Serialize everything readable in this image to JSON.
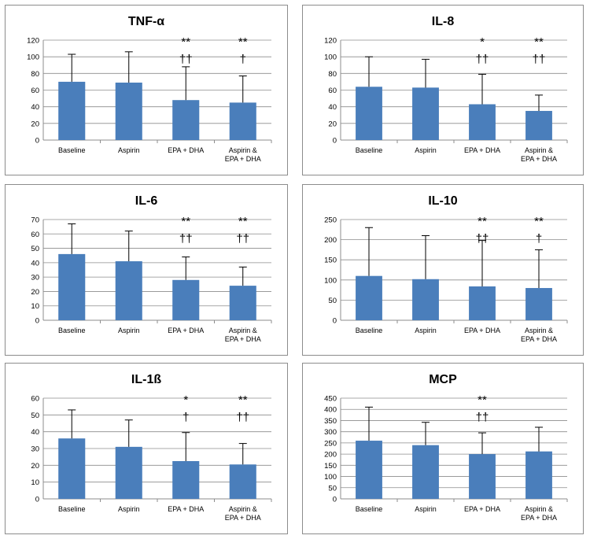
{
  "chart_data": [
    {
      "type": "bar",
      "title": "TNF-α",
      "categories": [
        "Baseline",
        "Aspirin",
        "EPA + DHA",
        "Aspirin &\nEPA + DHA"
      ],
      "values": [
        70,
        69,
        48,
        45
      ],
      "error_upper": [
        103,
        106,
        88,
        77
      ],
      "annotations": [
        [
          "",
          ""
        ],
        [
          "",
          ""
        ],
        [
          "**",
          "††"
        ],
        [
          "**",
          "†"
        ]
      ],
      "ylim": [
        0,
        120
      ],
      "yticks": [
        0,
        20,
        40,
        60,
        80,
        100,
        120
      ],
      "bar_color": "#4a7ebb",
      "grid": true
    },
    {
      "type": "bar",
      "title": "IL-8",
      "categories": [
        "Baseline",
        "Aspirin",
        "EPA + DHA",
        "Aspirin &\nEPA + DHA"
      ],
      "values": [
        64,
        63,
        43,
        35
      ],
      "error_upper": [
        100,
        97,
        79,
        54
      ],
      "annotations": [
        [
          "",
          ""
        ],
        [
          "",
          ""
        ],
        [
          "*",
          "††"
        ],
        [
          "**",
          "††"
        ]
      ],
      "ylim": [
        0,
        120
      ],
      "yticks": [
        0,
        20,
        40,
        60,
        80,
        100,
        120
      ],
      "bar_color": "#4a7ebb",
      "grid": true
    },
    {
      "type": "bar",
      "title": "IL-6",
      "categories": [
        "Baseline",
        "Aspirin",
        "EPA + DHA",
        "Aspirin &\nEPA + DHA"
      ],
      "values": [
        46,
        41,
        28,
        24
      ],
      "error_upper": [
        67,
        62,
        44,
        37
      ],
      "annotations": [
        [
          "",
          ""
        ],
        [
          "",
          ""
        ],
        [
          "**",
          "††"
        ],
        [
          "**",
          "††"
        ]
      ],
      "ylim": [
        0,
        70
      ],
      "yticks": [
        0,
        10,
        20,
        30,
        40,
        50,
        60,
        70
      ],
      "bar_color": "#4a7ebb",
      "grid": true
    },
    {
      "type": "bar",
      "title": "IL-10",
      "categories": [
        "Baseline",
        "Aspirin",
        "EPA + DHA",
        "Aspirin &\nEPA + DHA"
      ],
      "values": [
        110,
        102,
        84,
        80
      ],
      "error_upper": [
        230,
        210,
        198,
        175
      ],
      "annotations": [
        [
          "",
          ""
        ],
        [
          "",
          ""
        ],
        [
          "**",
          "††"
        ],
        [
          "**",
          "†"
        ]
      ],
      "ylim": [
        0,
        250
      ],
      "yticks": [
        0,
        50,
        100,
        150,
        200,
        250
      ],
      "bar_color": "#4a7ebb",
      "grid": true
    },
    {
      "type": "bar",
      "title": "IL-1ß",
      "categories": [
        "Baseline",
        "Aspirin",
        "EPA + DHA",
        "Aspirin &\nEPA + DHA"
      ],
      "values": [
        36,
        31,
        22.5,
        20.5
      ],
      "error_upper": [
        53,
        47,
        39.5,
        33
      ],
      "annotations": [
        [
          "",
          ""
        ],
        [
          "",
          ""
        ],
        [
          "*",
          "†"
        ],
        [
          "**",
          "††"
        ]
      ],
      "ylim": [
        0,
        60
      ],
      "yticks": [
        0,
        10,
        20,
        30,
        40,
        50,
        60
      ],
      "bar_color": "#4a7ebb",
      "grid": true
    },
    {
      "type": "bar",
      "title": "MCP",
      "categories": [
        "Baseline",
        "Aspirin",
        "EPA + DHA",
        "Aspirin &\nEPA + DHA"
      ],
      "values": [
        260,
        240,
        200,
        212
      ],
      "error_upper": [
        410,
        342,
        295,
        320
      ],
      "annotations": [
        [
          "",
          ""
        ],
        [
          "",
          ""
        ],
        [
          "**",
          "††"
        ],
        [
          "",
          ""
        ]
      ],
      "ylim": [
        0,
        450
      ],
      "yticks": [
        0,
        50,
        100,
        150,
        200,
        250,
        300,
        350,
        400,
        450
      ],
      "bar_color": "#4a7ebb",
      "grid": true
    }
  ]
}
